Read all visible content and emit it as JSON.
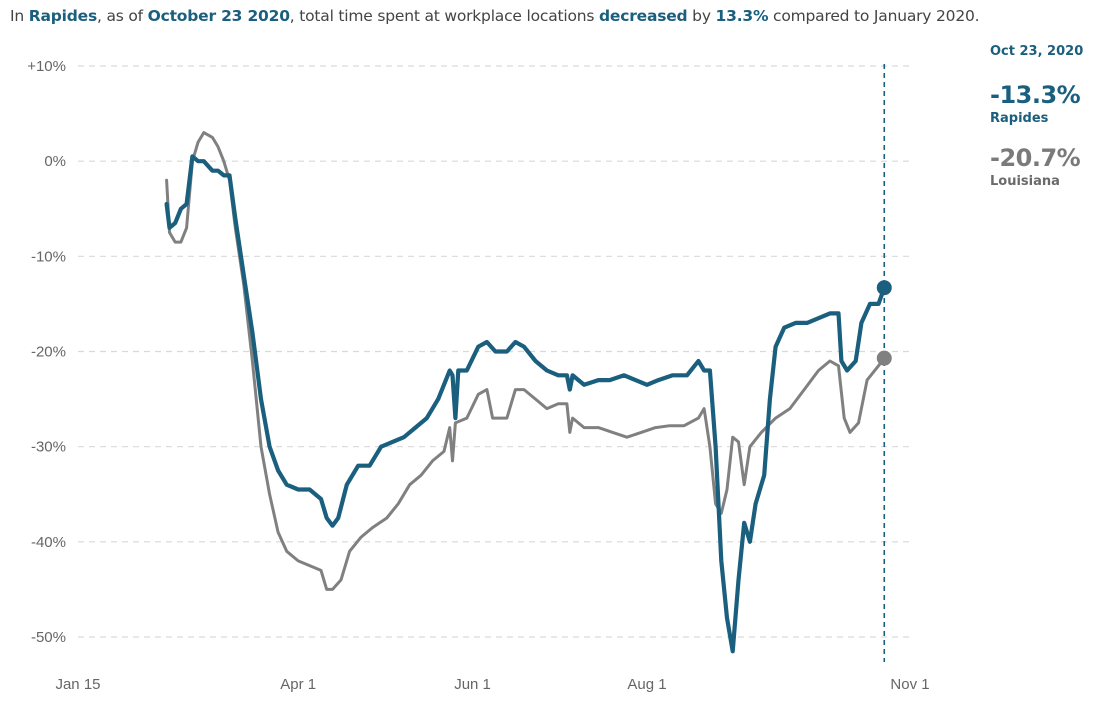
{
  "headline": {
    "p1": "In ",
    "place": "Rapides",
    "p2": ", as of ",
    "date": "October 23 2020",
    "p3": ", total time spent at workplace locations ",
    "direction": "decreased",
    "p4": " by ",
    "amount": "13.3%",
    "p5": " compared to January 2020."
  },
  "legend": {
    "date": "Oct 23, 2020",
    "local_value": "-13.3%",
    "local_name": "Rapides",
    "state_value": "-20.7%",
    "state_name": "Louisiana"
  },
  "colors": {
    "local": "#1b5f7e",
    "state": "#808080",
    "grid": "#d9d9d9",
    "marker_line": "#1b5f7e"
  },
  "chart_data": {
    "type": "line",
    "title": "In Rapides, as of October 23 2020, total time spent at workplace locations decreased by 13.3% compared to January 2020.",
    "xlabel": "",
    "ylabel": "",
    "ylim": [
      -52,
      10
    ],
    "yticks": [
      10,
      0,
      -10,
      -20,
      -30,
      -40,
      -50
    ],
    "ytick_labels": [
      "+10%",
      "0%",
      "-10%",
      "-20%",
      "-30%",
      "-40%",
      "-50%"
    ],
    "xlim": [
      "2020-01-15",
      "2020-11-01"
    ],
    "xticks": [
      "2020-01-15",
      "2020-04-01",
      "2020-06-01",
      "2020-08-01",
      "2020-11-01"
    ],
    "xtick_labels": [
      "Jan 15",
      "Apr 1",
      "Jun 1",
      "Aug 1",
      "Nov 1"
    ],
    "marker_date": "2020-10-23",
    "series": [
      {
        "name": "Rapides",
        "points": [
          [
            "2020-02-15",
            -4.5
          ],
          [
            "2020-02-16",
            -7
          ],
          [
            "2020-02-18",
            -6.5
          ],
          [
            "2020-02-20",
            -5
          ],
          [
            "2020-02-22",
            -4.5
          ],
          [
            "2020-02-24",
            0.5
          ],
          [
            "2020-02-26",
            0
          ],
          [
            "2020-02-28",
            0
          ],
          [
            "2020-03-02",
            -1
          ],
          [
            "2020-03-04",
            -1
          ],
          [
            "2020-03-06",
            -1.5
          ],
          [
            "2020-03-08",
            -1.5
          ],
          [
            "2020-03-10",
            -6
          ],
          [
            "2020-03-13",
            -12
          ],
          [
            "2020-03-16",
            -18
          ],
          [
            "2020-03-19",
            -25
          ],
          [
            "2020-03-22",
            -30
          ],
          [
            "2020-03-25",
            -32.5
          ],
          [
            "2020-03-28",
            -34
          ],
          [
            "2020-04-01",
            -34.5
          ],
          [
            "2020-04-05",
            -34.5
          ],
          [
            "2020-04-09",
            -35.5
          ],
          [
            "2020-04-11",
            -37.5
          ],
          [
            "2020-04-13",
            -38.3
          ],
          [
            "2020-04-15",
            -37.5
          ],
          [
            "2020-04-18",
            -34
          ],
          [
            "2020-04-22",
            -32
          ],
          [
            "2020-04-26",
            -32
          ],
          [
            "2020-04-30",
            -30
          ],
          [
            "2020-05-04",
            -29.5
          ],
          [
            "2020-05-08",
            -29
          ],
          [
            "2020-05-12",
            -28
          ],
          [
            "2020-05-16",
            -27
          ],
          [
            "2020-05-20",
            -25
          ],
          [
            "2020-05-24",
            -22
          ],
          [
            "2020-05-25",
            -22.5
          ],
          [
            "2020-05-26",
            -27
          ],
          [
            "2020-05-27",
            -22
          ],
          [
            "2020-05-30",
            -22
          ],
          [
            "2020-06-03",
            -19.5
          ],
          [
            "2020-06-06",
            -19
          ],
          [
            "2020-06-09",
            -20
          ],
          [
            "2020-06-13",
            -20
          ],
          [
            "2020-06-16",
            -19
          ],
          [
            "2020-06-19",
            -19.5
          ],
          [
            "2020-06-23",
            -21
          ],
          [
            "2020-06-27",
            -22
          ],
          [
            "2020-07-01",
            -22.5
          ],
          [
            "2020-07-04",
            -22.5
          ],
          [
            "2020-07-05",
            -24
          ],
          [
            "2020-07-06",
            -22.5
          ],
          [
            "2020-07-10",
            -23.5
          ],
          [
            "2020-07-15",
            -23
          ],
          [
            "2020-07-19",
            -23
          ],
          [
            "2020-07-24",
            -22.5
          ],
          [
            "2020-07-28",
            -23
          ],
          [
            "2020-08-01",
            -23.5
          ],
          [
            "2020-08-05",
            -23
          ],
          [
            "2020-08-10",
            -22.5
          ],
          [
            "2020-08-15",
            -22.5
          ],
          [
            "2020-08-19",
            -21
          ],
          [
            "2020-08-21",
            -22
          ],
          [
            "2020-08-23",
            -22
          ],
          [
            "2020-08-25",
            -30
          ],
          [
            "2020-08-27",
            -42
          ],
          [
            "2020-08-29",
            -48
          ],
          [
            "2020-08-31",
            -51.5
          ],
          [
            "2020-09-02",
            -44
          ],
          [
            "2020-09-04",
            -38
          ],
          [
            "2020-09-06",
            -40
          ],
          [
            "2020-09-08",
            -36
          ],
          [
            "2020-09-11",
            -33
          ],
          [
            "2020-09-13",
            -25
          ],
          [
            "2020-09-15",
            -19.5
          ],
          [
            "2020-09-18",
            -17.5
          ],
          [
            "2020-09-22",
            -17
          ],
          [
            "2020-09-26",
            -17
          ],
          [
            "2020-09-30",
            -16.5
          ],
          [
            "2020-10-04",
            -16
          ],
          [
            "2020-10-07",
            -16
          ],
          [
            "2020-10-08",
            -21
          ],
          [
            "2020-10-10",
            -22
          ],
          [
            "2020-10-13",
            -21
          ],
          [
            "2020-10-15",
            -17
          ],
          [
            "2020-10-18",
            -15
          ],
          [
            "2020-10-21",
            -15
          ],
          [
            "2020-10-23",
            -13.3
          ]
        ]
      },
      {
        "name": "Louisiana",
        "points": [
          [
            "2020-02-15",
            -2
          ],
          [
            "2020-02-16",
            -7.5
          ],
          [
            "2020-02-18",
            -8.5
          ],
          [
            "2020-02-20",
            -8.5
          ],
          [
            "2020-02-22",
            -7
          ],
          [
            "2020-02-24",
            0
          ],
          [
            "2020-02-26",
            2
          ],
          [
            "2020-02-28",
            3
          ],
          [
            "2020-03-02",
            2.5
          ],
          [
            "2020-03-04",
            1.5
          ],
          [
            "2020-03-06",
            0
          ],
          [
            "2020-03-08",
            -2
          ],
          [
            "2020-03-10",
            -7
          ],
          [
            "2020-03-13",
            -13
          ],
          [
            "2020-03-16",
            -21
          ],
          [
            "2020-03-19",
            -30
          ],
          [
            "2020-03-22",
            -35
          ],
          [
            "2020-03-25",
            -39
          ],
          [
            "2020-03-28",
            -41
          ],
          [
            "2020-04-01",
            -42
          ],
          [
            "2020-04-05",
            -42.5
          ],
          [
            "2020-04-09",
            -43
          ],
          [
            "2020-04-11",
            -45
          ],
          [
            "2020-04-13",
            -45
          ],
          [
            "2020-04-16",
            -44
          ],
          [
            "2020-04-19",
            -41
          ],
          [
            "2020-04-23",
            -39.5
          ],
          [
            "2020-04-27",
            -38.5
          ],
          [
            "2020-05-02",
            -37.5
          ],
          [
            "2020-05-06",
            -36
          ],
          [
            "2020-05-10",
            -34
          ],
          [
            "2020-05-14",
            -33
          ],
          [
            "2020-05-18",
            -31.5
          ],
          [
            "2020-05-22",
            -30.5
          ],
          [
            "2020-05-24",
            -28
          ],
          [
            "2020-05-25",
            -31.5
          ],
          [
            "2020-05-26",
            -27.5
          ],
          [
            "2020-05-30",
            -27
          ],
          [
            "2020-06-03",
            -24.5
          ],
          [
            "2020-06-06",
            -24
          ],
          [
            "2020-06-08",
            -27
          ],
          [
            "2020-06-13",
            -27
          ],
          [
            "2020-06-16",
            -24
          ],
          [
            "2020-06-19",
            -24
          ],
          [
            "2020-06-23",
            -25
          ],
          [
            "2020-06-27",
            -26
          ],
          [
            "2020-07-01",
            -25.5
          ],
          [
            "2020-07-04",
            -25.5
          ],
          [
            "2020-07-05",
            -28.5
          ],
          [
            "2020-07-06",
            -27
          ],
          [
            "2020-07-10",
            -28
          ],
          [
            "2020-07-15",
            -28
          ],
          [
            "2020-07-20",
            -28.5
          ],
          [
            "2020-07-25",
            -29
          ],
          [
            "2020-07-30",
            -28.5
          ],
          [
            "2020-08-04",
            -28
          ],
          [
            "2020-08-09",
            -27.8
          ],
          [
            "2020-08-14",
            -27.8
          ],
          [
            "2020-08-19",
            -27
          ],
          [
            "2020-08-21",
            -26
          ],
          [
            "2020-08-23",
            -30
          ],
          [
            "2020-08-25",
            -36
          ],
          [
            "2020-08-27",
            -37
          ],
          [
            "2020-08-29",
            -34.5
          ],
          [
            "2020-08-31",
            -29
          ],
          [
            "2020-09-02",
            -29.5
          ],
          [
            "2020-09-04",
            -34
          ],
          [
            "2020-09-06",
            -30
          ],
          [
            "2020-09-10",
            -28.5
          ],
          [
            "2020-09-15",
            -27
          ],
          [
            "2020-09-20",
            -26
          ],
          [
            "2020-09-25",
            -24
          ],
          [
            "2020-09-30",
            -22
          ],
          [
            "2020-10-04",
            -21
          ],
          [
            "2020-10-07",
            -21.5
          ],
          [
            "2020-10-09",
            -27
          ],
          [
            "2020-10-11",
            -28.5
          ],
          [
            "2020-10-14",
            -27.5
          ],
          [
            "2020-10-17",
            -23
          ],
          [
            "2020-10-21",
            -21.5
          ],
          [
            "2020-10-23",
            -20.7
          ]
        ]
      }
    ]
  }
}
